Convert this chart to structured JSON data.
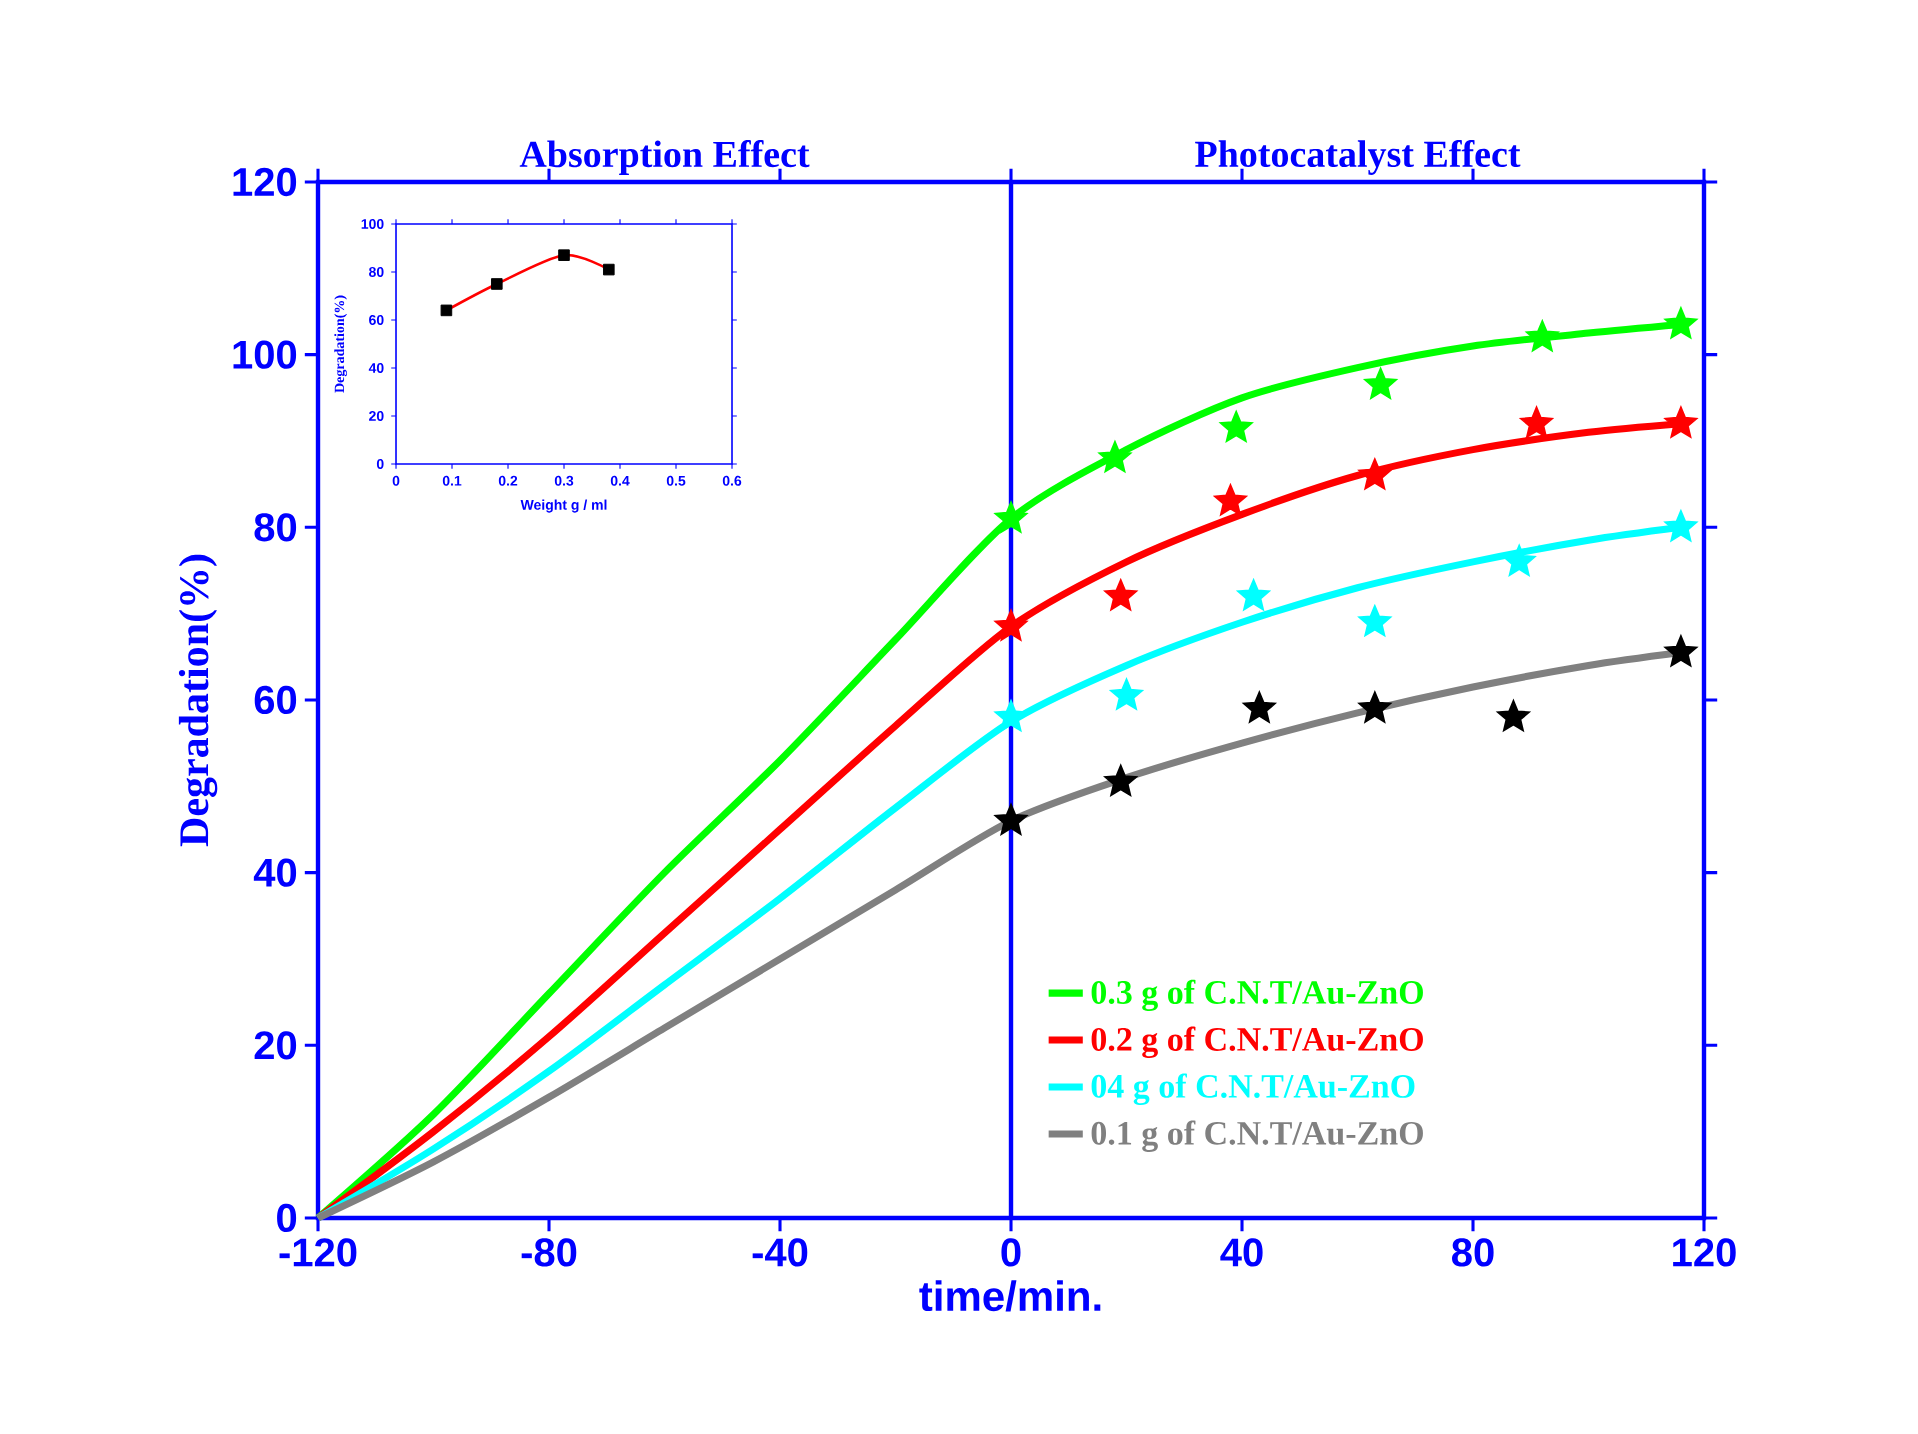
{
  "chart_data": [
    {
      "type": "line",
      "xlabel": "time/min.",
      "ylabel": "Degradation(%)",
      "annotations": [
        "Absorption Effect",
        "Photocatalyst Effect"
      ],
      "xlim": [
        -120,
        120
      ],
      "ylim": [
        0,
        120
      ],
      "xticks": [
        -120,
        -80,
        -40,
        0,
        40,
        80,
        120
      ],
      "yticks": [
        0,
        20,
        40,
        60,
        80,
        100,
        120
      ],
      "legend": "bottom right",
      "ref_lines": [
        {
          "axis": "x",
          "value": 0,
          "color": "#0000ff"
        }
      ],
      "series": [
        {
          "name": "0.3 g of C.N.T/Au-ZnO",
          "color": "#00ff00",
          "x": [
            -120,
            -100,
            -80,
            -60,
            -40,
            -20,
            0,
            20,
            40,
            60,
            80,
            100,
            116
          ],
          "values": [
            0,
            12,
            26,
            40,
            53,
            67,
            81,
            89,
            95,
            98.5,
            101,
            102.5,
            103.5
          ]
        },
        {
          "name": "0.2 g of C.N.T/Au-ZnO",
          "color": "#ff0000",
          "x": [
            -120,
            -100,
            -80,
            -60,
            -40,
            -20,
            0,
            20,
            40,
            60,
            80,
            100,
            116
          ],
          "values": [
            0,
            10,
            21,
            33,
            45,
            57,
            68.5,
            76,
            81.5,
            86,
            89,
            91,
            92
          ]
        },
        {
          "name": "04 g of C.N.T/Au-ZnO",
          "color": "#00ffff",
          "x": [
            -120,
            -100,
            -80,
            -60,
            -40,
            -20,
            0,
            20,
            40,
            60,
            80,
            100,
            116
          ],
          "values": [
            0,
            8,
            17,
            27,
            37,
            47.5,
            57.5,
            64,
            69,
            73,
            76,
            78.5,
            80
          ]
        },
        {
          "name": "0.1 g of C.N.T/Au-ZnO",
          "color": "#808080",
          "x": [
            -120,
            -100,
            -80,
            -60,
            -40,
            -20,
            0,
            20,
            40,
            60,
            80,
            100,
            116
          ],
          "values": [
            0,
            6.5,
            14,
            22,
            30,
            38,
            46,
            51,
            55,
            58.5,
            61.5,
            64,
            65.5
          ]
        },
        {
          "type": "scatter",
          "marker": "star",
          "color": "#00ff00",
          "x": [
            0,
            18,
            39,
            64,
            92,
            116
          ],
          "values": [
            81,
            88,
            91.5,
            96.5,
            102,
            103.5
          ]
        },
        {
          "type": "scatter",
          "marker": "star",
          "color": "#ff0000",
          "x": [
            0,
            19,
            38,
            63,
            91,
            116
          ],
          "values": [
            68.5,
            72,
            83,
            86,
            92,
            92
          ]
        },
        {
          "type": "scatter",
          "marker": "star",
          "color": "#00ffff",
          "x": [
            0,
            20,
            42,
            63,
            88,
            116
          ],
          "values": [
            58,
            60.5,
            72,
            69,
            76,
            80
          ]
        },
        {
          "type": "scatter",
          "marker": "star",
          "color": "#000000",
          "x": [
            0,
            19,
            43,
            63,
            87,
            116
          ],
          "values": [
            46,
            50.5,
            59,
            59,
            58,
            65.5
          ]
        }
      ]
    },
    {
      "type": "line",
      "xlabel": "Weight g / ml",
      "ylabel": "Degradation(%)",
      "xlim": [
        0,
        0.6
      ],
      "ylim": [
        0,
        100
      ],
      "xticks": [
        0,
        0.1,
        0.2,
        0.3,
        0.4,
        0.5,
        0.6
      ],
      "yticks": [
        0,
        20,
        40,
        60,
        80,
        100
      ],
      "series": [
        {
          "color": "#ff0000",
          "x": [
            0.09,
            0.18,
            0.3,
            0.38
          ],
          "values": [
            64,
            75,
            87,
            81
          ]
        },
        {
          "type": "scatter",
          "marker": "square",
          "color": "#000000",
          "x": [
            0.09,
            0.18,
            0.3,
            0.38
          ],
          "values": [
            64,
            75,
            87,
            81
          ]
        }
      ]
    }
  ]
}
